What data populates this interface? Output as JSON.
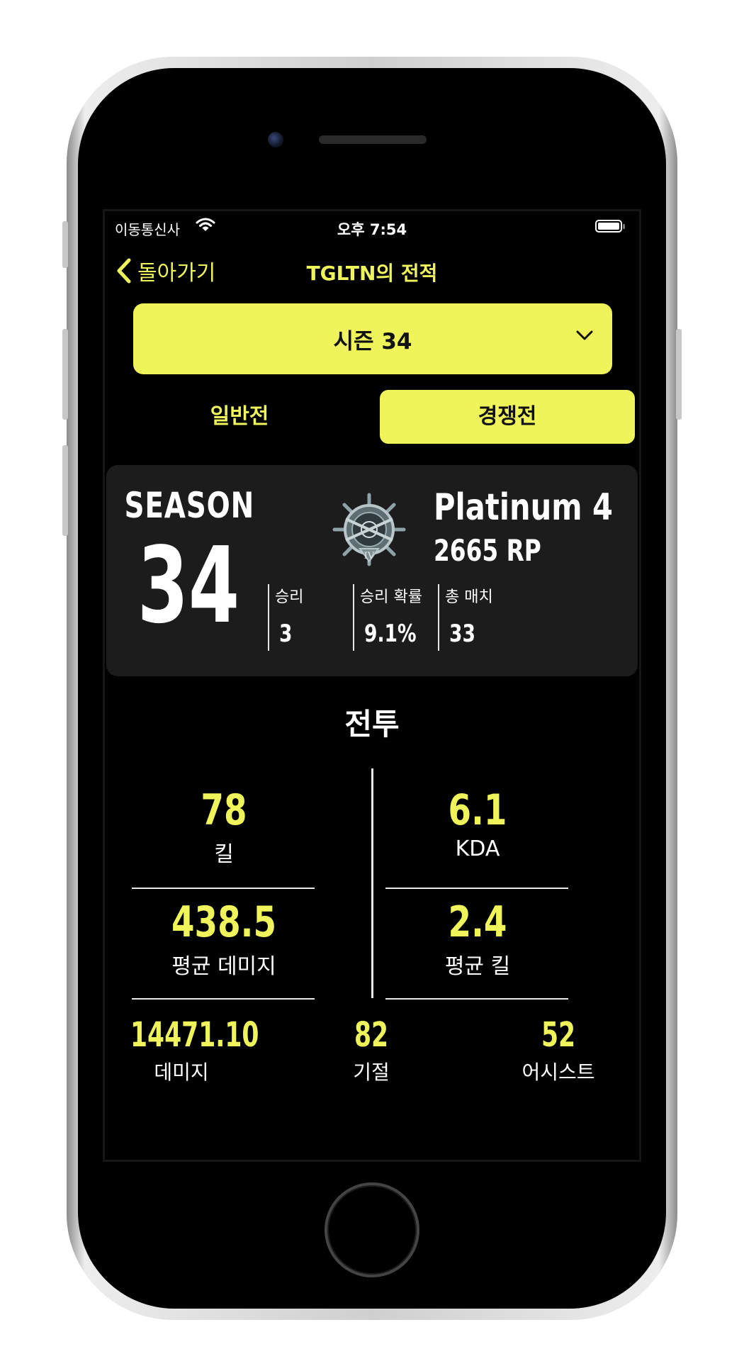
{
  "status_bar": {
    "carrier": "이동통신사",
    "time": "오후 7:54"
  },
  "nav": {
    "back_label": "돌아가기",
    "title": "TGLTN의 전적"
  },
  "season_selector": {
    "selected": "시즌 34"
  },
  "mode_tabs": [
    {
      "label": "일반전",
      "selected": false
    },
    {
      "label": "경쟁전",
      "selected": true
    }
  ],
  "rank_card": {
    "season_word": "SEASON",
    "season_number": "34",
    "tier": "Platinum 4",
    "rp": "2665 RP",
    "emblem_icon": "platinum-rank-emblem-icon",
    "emblem_roman": "IV",
    "stats": [
      {
        "label": "승리",
        "value": "3"
      },
      {
        "label": "승리 확률",
        "value": "9.1%"
      },
      {
        "label": "총 매치",
        "value": "33"
      }
    ]
  },
  "combat": {
    "title": "전투",
    "main_stats": [
      {
        "value": "78",
        "label": "킬"
      },
      {
        "value": "6.1",
        "label": "KDA"
      },
      {
        "value": "438.5",
        "label": "평균 데미지"
      },
      {
        "value": "2.4",
        "label": "평균 킬"
      }
    ],
    "minor_stats": [
      {
        "value": "14471.10",
        "label": "데미지"
      },
      {
        "value": "82",
        "label": "기절"
      },
      {
        "value": "52",
        "label": "어시스트"
      }
    ]
  },
  "colors": {
    "accent": "#eef45a",
    "background": "#000000",
    "card": "#1c1c1c"
  }
}
